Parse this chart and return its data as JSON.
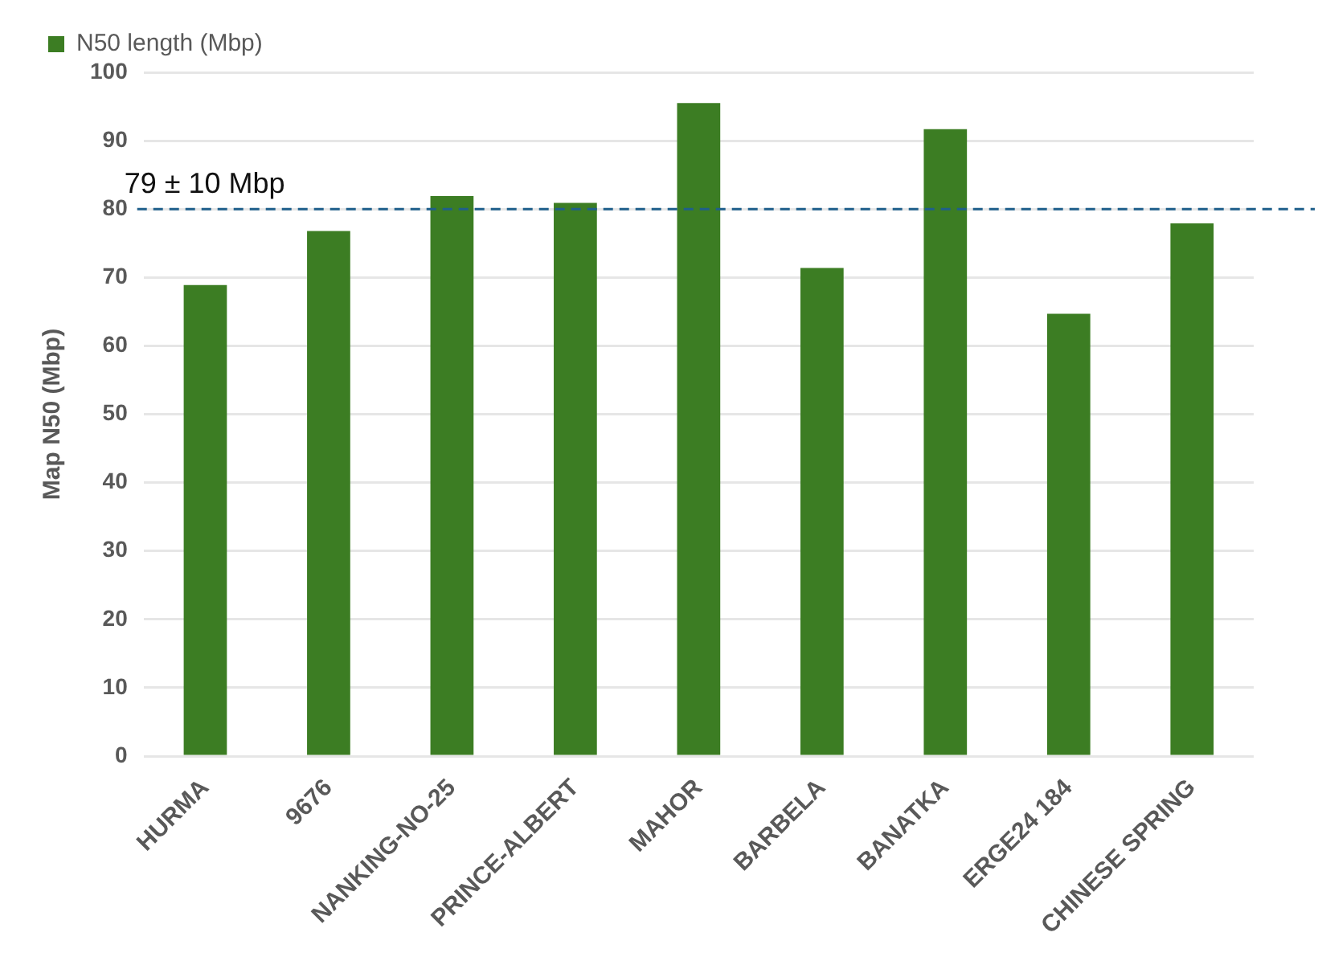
{
  "chart_data": {
    "type": "bar",
    "ylabel": "Map N50 (Mbp)",
    "categories": [
      "HURMA",
      "9676",
      "NANKING-NO-25",
      "PRINCE-ALBERT",
      "MAHOR",
      "BARBELA",
      "BANATKA",
      "ERGE24 184",
      "CHINESE SPRING"
    ],
    "series": [
      {
        "name": "N50 length (Mbp)",
        "color": "#3c7d23",
        "values": [
          68.9,
          76.8,
          81.9,
          80.9,
          95.5,
          71.4,
          91.7,
          64.7,
          77.9
        ]
      }
    ],
    "ylim": [
      0,
      100
    ],
    "yticks": [
      0,
      10,
      20,
      30,
      40,
      50,
      60,
      70,
      80,
      90,
      100
    ],
    "grid": "y",
    "legend": "top left",
    "ref_lines": [
      {
        "axis": "y",
        "value": 80,
        "label": "79 ± 10 Mbp",
        "color": "#1f5f8b",
        "line_style": "dashed"
      }
    ]
  }
}
